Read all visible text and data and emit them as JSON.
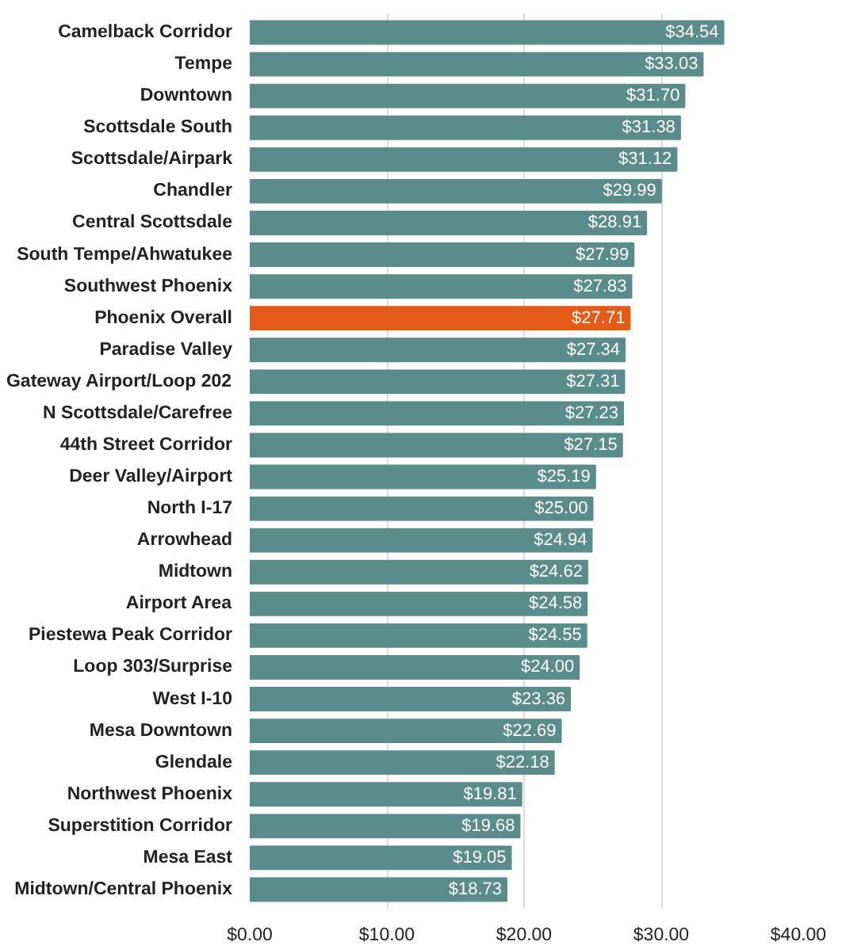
{
  "chart_data": {
    "type": "bar",
    "orientation": "horizontal",
    "categories": [
      "Camelback Corridor",
      "Tempe",
      "Downtown",
      "Scottsdale South",
      "Scottsdale/Airpark",
      "Chandler",
      "Central Scottsdale",
      "South Tempe/Ahwatukee",
      "Southwest Phoenix",
      "Phoenix Overall",
      "Paradise Valley",
      "Gateway Airport/Loop 202",
      "N Scottsdale/Carefree",
      "44th Street Corridor",
      "Deer Valley/Airport",
      "North I-17",
      "Arrowhead",
      "Midtown",
      "Airport Area",
      "Piestewa Peak Corridor",
      "Loop 303/Surprise",
      "West I-10",
      "Mesa Downtown",
      "Glendale",
      "Northwest Phoenix",
      "Superstition Corridor",
      "Mesa East",
      "Midtown/Central Phoenix"
    ],
    "values": [
      34.54,
      33.03,
      31.7,
      31.38,
      31.12,
      29.99,
      28.91,
      27.99,
      27.83,
      27.71,
      27.34,
      27.31,
      27.23,
      27.15,
      25.19,
      25.0,
      24.94,
      24.62,
      24.58,
      24.55,
      24.0,
      23.36,
      22.69,
      22.18,
      19.81,
      19.68,
      19.05,
      18.73
    ],
    "value_labels": [
      "$34.54",
      "$33.03",
      "$31.70",
      "$31.38",
      "$31.12",
      "$29.99",
      "$28.91",
      "$27.99",
      "$27.83",
      "$27.71",
      "$27.34",
      "$27.31",
      "$27.23",
      "$27.15",
      "$25.19",
      "$25.00",
      "$24.94",
      "$24.62",
      "$24.58",
      "$24.55",
      "$24.00",
      "$23.36",
      "$22.69",
      "$22.18",
      "$19.81",
      "$19.68",
      "$19.05",
      "$18.73"
    ],
    "colors": [
      "#5b8c8c",
      "#5b8c8c",
      "#5b8c8c",
      "#5b8c8c",
      "#5b8c8c",
      "#5b8c8c",
      "#5b8c8c",
      "#5b8c8c",
      "#5b8c8c",
      "#e35a19",
      "#5b8c8c",
      "#5b8c8c",
      "#5b8c8c",
      "#5b8c8c",
      "#5b8c8c",
      "#5b8c8c",
      "#5b8c8c",
      "#5b8c8c",
      "#5b8c8c",
      "#5b8c8c",
      "#5b8c8c",
      "#5b8c8c",
      "#5b8c8c",
      "#5b8c8c",
      "#5b8c8c",
      "#5b8c8c",
      "#5b8c8c",
      "#5b8c8c"
    ],
    "xlim": [
      0,
      40
    ],
    "xticks": [
      {
        "value": 0,
        "label": "$0.00"
      },
      {
        "value": 10,
        "label": "$10.00"
      },
      {
        "value": 20,
        "label": "$20.00"
      },
      {
        "value": 30,
        "label": "$30.00"
      },
      {
        "value": 40,
        "label": "$40.00"
      }
    ],
    "grid": "x"
  }
}
